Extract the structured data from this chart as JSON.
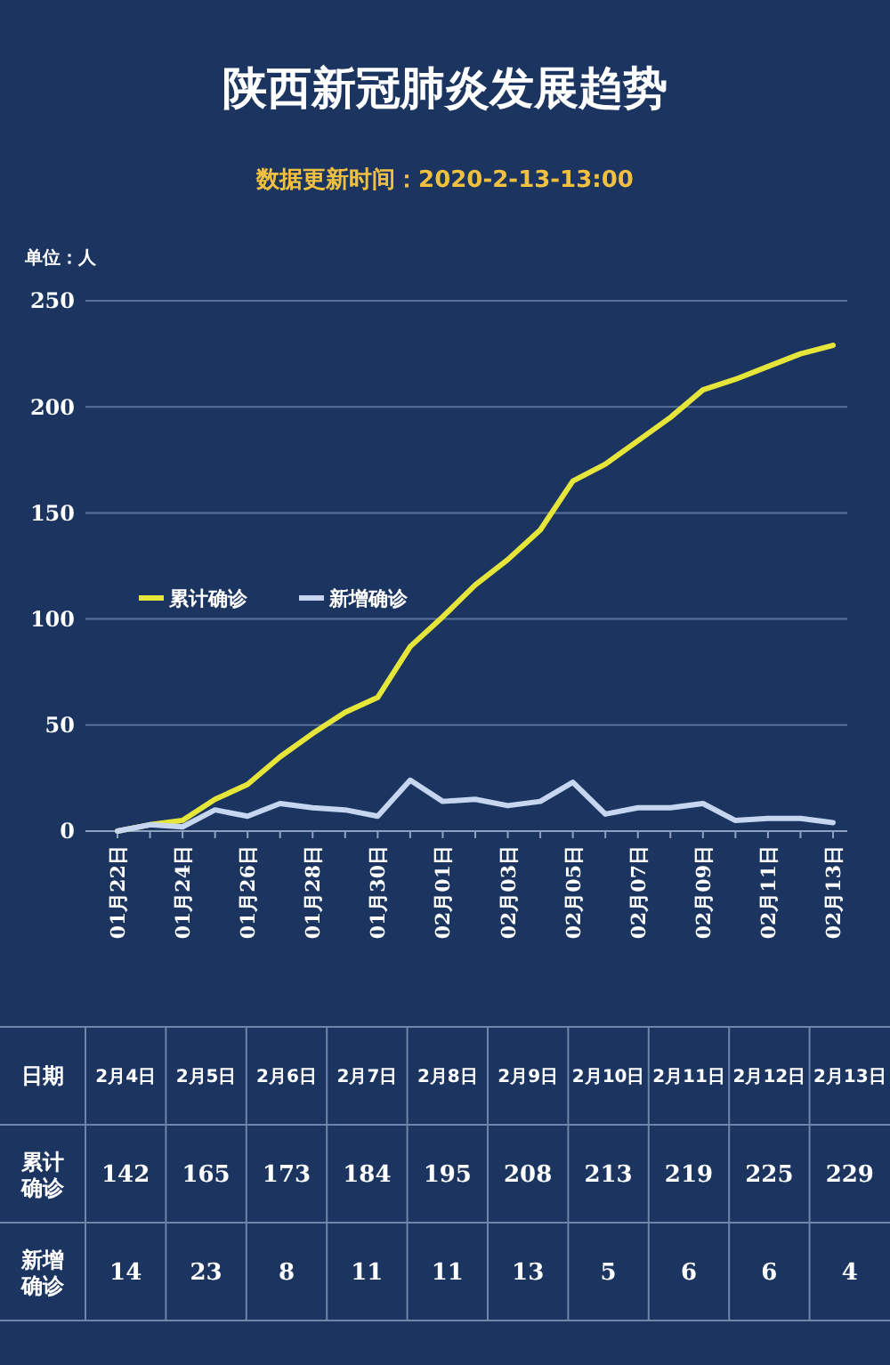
{
  "chart_data": [
    {
      "type": "line",
      "title": "陕西新冠肺炎发展趋势",
      "subtitle": "数据更新时间：2020-2-13-13:00",
      "ylabel": "单位：人",
      "categories": [
        "01月22日",
        null,
        "01月24日",
        null,
        "01月26日",
        null,
        "01月28日",
        null,
        "01月30日",
        null,
        "02月01日",
        null,
        "02月03日",
        null,
        "02月05日",
        null,
        "02月07日",
        null,
        "02月09日",
        null,
        "02月11日",
        null,
        "02月13日"
      ],
      "series": [
        {
          "name": "累计确诊",
          "color": "#e6e63a",
          "values": [
            0,
            3,
            5,
            15,
            22,
            35,
            46,
            56,
            63,
            87,
            101,
            116,
            128,
            142,
            165,
            173,
            184,
            195,
            208,
            213,
            219,
            225,
            229
          ]
        },
        {
          "name": "新增确诊",
          "color": "#c6d6f0",
          "values": [
            0,
            3,
            2,
            10,
            7,
            13,
            11,
            10,
            7,
            24,
            14,
            15,
            12,
            14,
            23,
            8,
            11,
            11,
            13,
            5,
            6,
            6,
            4
          ]
        }
      ],
      "ylim": [
        0,
        250
      ],
      "yticks": [
        0,
        50,
        100,
        150,
        200,
        250
      ],
      "grid": "y",
      "legend": "left",
      "marker": "none",
      "line_style": "solid"
    },
    {
      "type": "other",
      "annotations": [
        "日期",
        "2月4日",
        "2月5日",
        "2月6日",
        "2月7日",
        "2月8日",
        "2月9日",
        "2月10日",
        "2月11日",
        "2月12日",
        "2月13日",
        "累计确诊",
        "142",
        "165",
        "173",
        "184",
        "195",
        "208",
        "213",
        "219",
        "225",
        "229",
        "新增确诊",
        "14",
        "23",
        "8",
        "11",
        "11",
        "13",
        "5",
        "6",
        "6",
        "4"
      ]
    }
  ]
}
